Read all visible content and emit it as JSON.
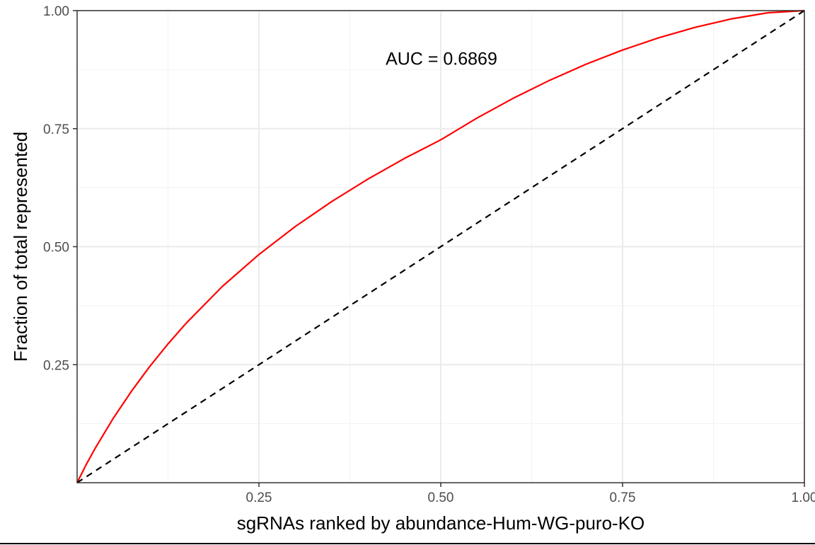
{
  "chart_data": {
    "type": "line",
    "xlabel": "sgRNAs ranked by abundance-Hum-WG-puro-KO",
    "ylabel": "Fraction of total represented",
    "xlim": [
      0,
      1
    ],
    "ylim": [
      0,
      1
    ],
    "x_ticks": [
      0.25,
      0.5,
      0.75,
      1.0
    ],
    "x_tick_labels": [
      "0.25",
      "0.50",
      "0.75",
      "1.00"
    ],
    "y_ticks": [
      0.25,
      0.5,
      0.75,
      1.0
    ],
    "y_tick_labels": [
      "0.25",
      "0.50",
      "0.75",
      "1.00"
    ],
    "grid": true,
    "annotation": {
      "text": "AUC = 0.6869",
      "x": 0.5,
      "y": 0.9
    },
    "series": [
      {
        "color": "#ff0000",
        "style": "solid",
        "x": [
          0,
          0.0125,
          0.025,
          0.05,
          0.075,
          0.1,
          0.125,
          0.15,
          0.2,
          0.25,
          0.3,
          0.35,
          0.4,
          0.45,
          0.5,
          0.55,
          0.6,
          0.65,
          0.7,
          0.75,
          0.8,
          0.85,
          0.9,
          0.95,
          1.0
        ],
        "y": [
          0,
          0.0385,
          0.0734,
          0.1372,
          0.1944,
          0.2465,
          0.2941,
          0.338,
          0.4162,
          0.4834,
          0.5427,
          0.5955,
          0.6433,
          0.6868,
          0.7263,
          0.7726,
          0.8146,
          0.8526,
          0.8866,
          0.9165,
          0.9426,
          0.9647,
          0.9826,
          0.9955,
          1.0
        ]
      },
      {
        "color": "#000000",
        "style": "dashed",
        "x": [
          0,
          1
        ],
        "y": [
          0,
          1
        ]
      }
    ]
  }
}
